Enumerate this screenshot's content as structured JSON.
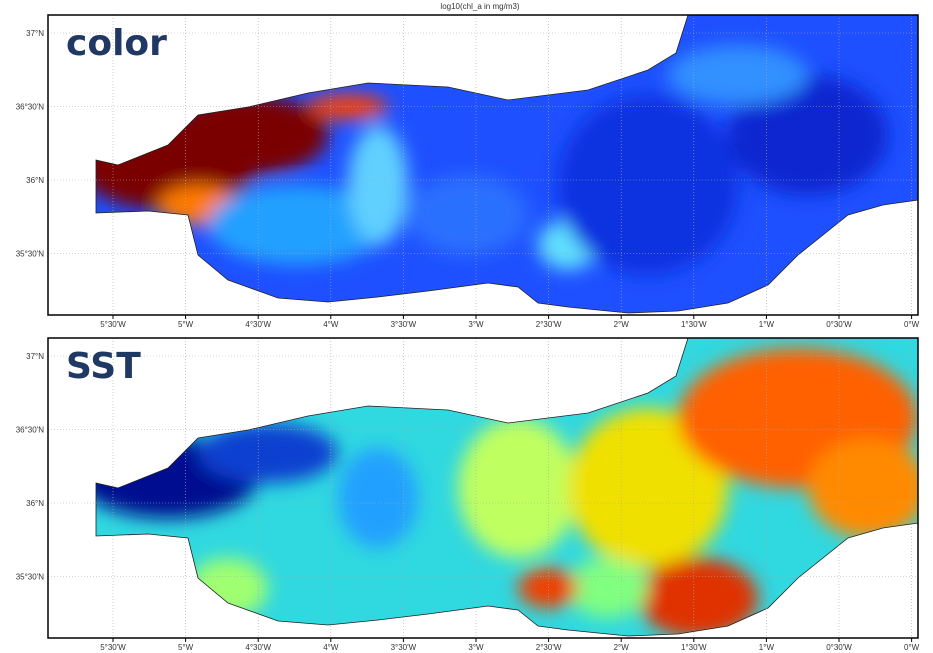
{
  "header": {
    "title": "log10(chl_a in mg/m3)"
  },
  "panels": [
    {
      "label": "color",
      "lat_labels": [
        "37°N",
        "36°30'N",
        "36°N",
        "35°30'N"
      ],
      "lon_labels": [
        "5°30'W",
        "5°W",
        "4°30'W",
        "4°W",
        "3°30'W",
        "3°W",
        "2°30'W",
        "2°W",
        "1°30'W",
        "1°W",
        "0°30'W",
        "0°W"
      ]
    },
    {
      "label": "SST",
      "lat_labels": [
        "37°N",
        "36°30'N",
        "36°N",
        "35°30'N"
      ],
      "lon_labels": [
        "5°30'W",
        "5°W",
        "4°30'W",
        "4°W",
        "3°30'W",
        "3°W",
        "2°30'W",
        "2°W",
        "1°30'W",
        "1°W",
        "0°30'W",
        "0°W"
      ]
    }
  ]
}
